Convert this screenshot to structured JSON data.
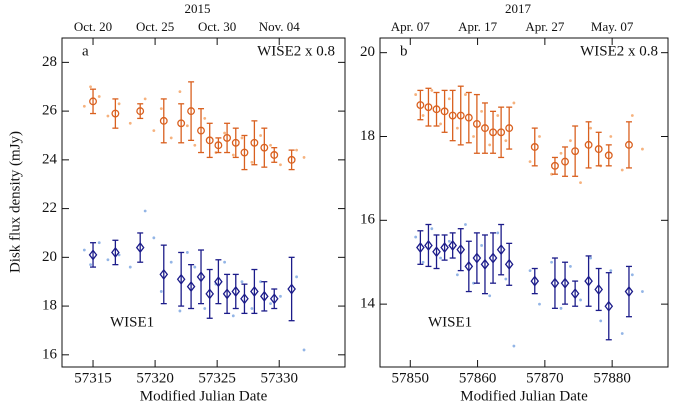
{
  "chart_data": [
    {
      "type": "scatter",
      "label": "a",
      "x_label": "Modified Julian Date",
      "y_label": "Disk flux density (mJy)",
      "xlim": [
        57312.5,
        57335.3
      ],
      "xticks": [
        57315,
        57320,
        57325,
        57330
      ],
      "ylim": [
        15.5,
        29
      ],
      "yticks": [
        16,
        18,
        20,
        22,
        24,
        26,
        28
      ],
      "top_axis": {
        "label": "2015",
        "ticks": [
          {
            "value": 57315,
            "label": "Oct. 20"
          },
          {
            "value": 57320,
            "label": "Oct. 25"
          },
          {
            "value": 57325,
            "label": "Oct. 30"
          },
          {
            "value": 57330,
            "label": "Nov. 04"
          }
        ]
      },
      "series": [
        {
          "name": "WISE2 x 0.8",
          "color": "#d9601f",
          "marker": "circle",
          "x": [
            57315.0,
            57316.8,
            57318.8,
            57320.7,
            57322.1,
            57322.9,
            57323.7,
            57324.4,
            57325.1,
            57325.8,
            57326.5,
            57327.2,
            57328.0,
            57328.8,
            57329.6,
            57331.0
          ],
          "values": [
            26.4,
            25.9,
            26.0,
            25.6,
            25.5,
            26.0,
            25.2,
            24.8,
            24.6,
            24.9,
            24.7,
            24.3,
            24.7,
            24.5,
            24.2,
            24.0
          ],
          "errors": [
            0.5,
            0.6,
            0.3,
            0.9,
            0.8,
            1.2,
            0.9,
            0.7,
            0.3,
            0.6,
            0.6,
            0.7,
            0.9,
            0.8,
            0.3,
            0.4
          ]
        },
        {
          "name": "WISE1",
          "color": "#1c1c8a",
          "marker": "diamond",
          "x": [
            57315.0,
            57316.8,
            57318.8,
            57320.7,
            57322.1,
            57322.9,
            57323.7,
            57324.4,
            57325.1,
            57325.8,
            57326.5,
            57327.2,
            57328.0,
            57328.8,
            57329.6,
            57331.0
          ],
          "values": [
            20.1,
            20.2,
            20.4,
            19.3,
            19.1,
            18.8,
            19.2,
            18.5,
            19.0,
            18.5,
            18.6,
            18.3,
            18.6,
            18.4,
            18.3,
            18.7
          ],
          "errors": [
            0.5,
            0.5,
            0.6,
            1.2,
            1.1,
            0.9,
            1.1,
            1.0,
            0.9,
            0.8,
            0.7,
            0.6,
            0.9,
            0.6,
            0.4,
            1.3
          ]
        },
        {
          "color": "#f6b27e",
          "marker": "dot",
          "x": [
            57314.3,
            57314.8,
            57315.5,
            57316.2,
            57317.1,
            57318.0,
            57319.2,
            57319.9,
            57320.5,
            57321.3,
            57322.0,
            57322.6,
            57323.2,
            57324.0,
            57324.9,
            57325.6,
            57326.3,
            57327.0,
            57327.8,
            57328.5,
            57329.3,
            57330.1,
            57331.4,
            57332.0
          ],
          "values": [
            26.2,
            27.0,
            26.6,
            25.8,
            26.3,
            25.5,
            26.5,
            25.2,
            26.1,
            24.9,
            26.8,
            25.4,
            24.6,
            25.7,
            24.3,
            25.1,
            24.2,
            24.9,
            23.9,
            25.0,
            24.6,
            23.8,
            24.4,
            24.1
          ]
        },
        {
          "color": "#93b5e6",
          "marker": "dot",
          "x": [
            57314.3,
            57314.8,
            57315.5,
            57316.2,
            57317.1,
            57318.0,
            57319.2,
            57319.9,
            57320.5,
            57321.3,
            57322.0,
            57322.6,
            57323.2,
            57324.0,
            57324.9,
            57325.6,
            57326.3,
            57327.0,
            57327.8,
            57328.5,
            57329.3,
            57330.1,
            57331.4,
            57332.0
          ],
          "values": [
            20.3,
            19.7,
            20.6,
            19.9,
            20.1,
            19.6,
            21.9,
            20.8,
            18.6,
            19.8,
            17.8,
            20.2,
            19.6,
            17.9,
            18.9,
            19.8,
            17.6,
            19.0,
            17.9,
            19.0,
            18.1,
            18.4,
            19.2,
            16.2
          ]
        }
      ]
    },
    {
      "type": "scatter",
      "label": "b",
      "x_label": "Modified Julian Date",
      "xlim": [
        57845.5,
        57888.3
      ],
      "xticks": [
        57850,
        57860,
        57870,
        57880
      ],
      "ylim": [
        12.5,
        20.35
      ],
      "yticks": [
        14,
        16,
        18,
        20
      ],
      "top_axis": {
        "label": "2017",
        "ticks": [
          {
            "value": 57850,
            "label": "Apr. 07"
          },
          {
            "value": 57860,
            "label": "Apr. 17"
          },
          {
            "value": 57870,
            "label": "Apr. 27"
          },
          {
            "value": 57880,
            "label": "May. 07"
          }
        ]
      },
      "series": [
        {
          "name": "WISE2 x 0.8",
          "color": "#d9601f",
          "marker": "circle",
          "x": [
            57851.5,
            57852.7,
            57853.9,
            57855.1,
            57856.3,
            57857.5,
            57858.7,
            57859.9,
            57861.1,
            57862.3,
            57863.5,
            57864.7,
            57868.5,
            57871.5,
            57873.0,
            57874.5,
            57876.5,
            57878.0,
            57879.5,
            57882.5
          ],
          "values": [
            18.75,
            18.7,
            18.65,
            18.6,
            18.5,
            18.5,
            18.45,
            18.3,
            18.2,
            18.1,
            18.1,
            18.2,
            17.75,
            17.3,
            17.4,
            17.65,
            17.8,
            17.7,
            17.55,
            17.8
          ],
          "errors": [
            0.35,
            0.45,
            0.4,
            0.5,
            0.6,
            0.7,
            0.6,
            0.7,
            0.6,
            0.5,
            0.6,
            0.5,
            0.45,
            0.2,
            0.35,
            0.6,
            0.55,
            0.4,
            0.25,
            0.55
          ]
        },
        {
          "name": "WISE1",
          "color": "#1c1c8a",
          "marker": "diamond",
          "x": [
            57851.5,
            57852.7,
            57853.9,
            57855.1,
            57856.3,
            57857.5,
            57858.7,
            57859.9,
            57861.1,
            57862.3,
            57863.5,
            57864.7,
            57868.5,
            57871.5,
            57873.0,
            57874.5,
            57876.5,
            57878.0,
            57879.5,
            57882.5
          ],
          "values": [
            15.35,
            15.4,
            15.25,
            15.35,
            15.4,
            15.3,
            14.9,
            15.1,
            14.95,
            15.1,
            15.3,
            14.95,
            14.55,
            14.5,
            14.5,
            14.25,
            14.55,
            14.35,
            13.95,
            14.3
          ],
          "errors": [
            0.4,
            0.5,
            0.4,
            0.3,
            0.3,
            0.5,
            0.6,
            0.6,
            0.7,
            0.6,
            0.6,
            0.5,
            0.3,
            0.6,
            0.5,
            0.3,
            0.6,
            0.5,
            0.8,
            0.6
          ]
        },
        {
          "color": "#f6b27e",
          "marker": "dot",
          "x": [
            57850.8,
            57851.9,
            57853.2,
            57854.5,
            57855.8,
            57857.0,
            57858.2,
            57859.4,
            57860.6,
            57861.8,
            57863.0,
            57864.2,
            57865.4,
            57867.8,
            57869.2,
            57871.0,
            57872.4,
            57873.8,
            57875.3,
            57876.8,
            57878.3,
            57879.8,
            57881.5,
            57883.0,
            57884.5
          ],
          "values": [
            19.0,
            18.5,
            19.1,
            18.3,
            18.9,
            18.2,
            19.0,
            18.0,
            18.6,
            17.8,
            18.5,
            17.9,
            18.8,
            17.4,
            18.0,
            17.1,
            17.6,
            17.9,
            16.9,
            18.2,
            17.3,
            18.0,
            17.2,
            18.5,
            17.7
          ]
        },
        {
          "color": "#93b5e6",
          "marker": "dot",
          "x": [
            57850.8,
            57851.9,
            57853.2,
            57854.5,
            57855.8,
            57857.0,
            57858.2,
            57859.4,
            57860.6,
            57861.8,
            57863.0,
            57864.2,
            57865.4,
            57867.8,
            57869.2,
            57871.0,
            57872.4,
            57873.8,
            57875.3,
            57876.8,
            57878.3,
            57879.8,
            57881.5,
            57883.0,
            57884.5
          ],
          "values": [
            15.6,
            15.0,
            15.8,
            15.1,
            15.5,
            14.7,
            15.9,
            14.5,
            15.4,
            14.2,
            15.7,
            14.6,
            13.0,
            14.8,
            14.0,
            15.0,
            13.9,
            14.9,
            14.1,
            15.1,
            13.6,
            14.8,
            13.3,
            14.7,
            14.3
          ]
        }
      ]
    }
  ]
}
